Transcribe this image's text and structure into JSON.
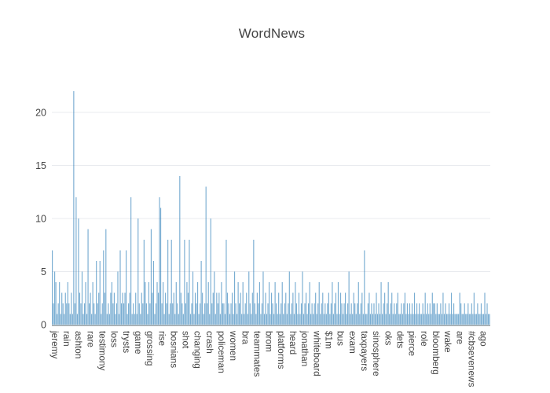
{
  "title": "WordNews",
  "colors": {
    "background": "#ffffff",
    "title_text": "#444444",
    "tick_text": "#444444",
    "gridline": "#e9ebef",
    "zeroline": "#95a0a6",
    "bar": "#1f77b4"
  },
  "chart_data": {
    "type": "bar",
    "title": "WordNews",
    "xlabel": "",
    "ylabel": "",
    "ylim": [
      0,
      23
    ],
    "yticks": [
      0,
      5,
      10,
      15,
      20
    ],
    "grid": true,
    "legend": false,
    "bar_color": "#1f77b4",
    "bar_opacity": 0.6,
    "n_bars": 368,
    "labeled_tick_start_index": 2,
    "labeled_tick_step": 10,
    "tick_labels": [
      "jeremy",
      "rain",
      "ashton",
      "rare",
      "testimony",
      "loss",
      "trysts",
      "game",
      "grossing",
      "rise",
      "bosnians",
      "shot",
      "changing",
      "crash",
      "policeman",
      "women",
      "bra",
      "teammates",
      "brom",
      "platforms",
      "heard",
      "jonathan",
      "whiteboard",
      "$1m",
      "bus",
      "exam",
      "taxpayers",
      "sinosphere",
      "oks",
      "dets",
      "pierce",
      "role",
      "bloomberg",
      "wake",
      "are",
      "#cbsevenews",
      "ago"
    ],
    "values": [
      7,
      2,
      5,
      4,
      1,
      2,
      4,
      1,
      3,
      2,
      1,
      3,
      2,
      4,
      2,
      1,
      3,
      1,
      22,
      2,
      12,
      1,
      10,
      3,
      2,
      5,
      1,
      2,
      4,
      1,
      9,
      2,
      3,
      1,
      4,
      2,
      1,
      6,
      2,
      3,
      6,
      1,
      2,
      7,
      3,
      9,
      1,
      2,
      1,
      3,
      4,
      2,
      3,
      1,
      2,
      5,
      1,
      7,
      2,
      3,
      2,
      3,
      7,
      1,
      2,
      3,
      12,
      1,
      2,
      1,
      3,
      1,
      10,
      2,
      1,
      3,
      2,
      8,
      4,
      2,
      1,
      4,
      2,
      9,
      3,
      6,
      1,
      2,
      4,
      3,
      12,
      11,
      2,
      4,
      1,
      3,
      2,
      8,
      1,
      2,
      8,
      2,
      3,
      1,
      4,
      2,
      1,
      14,
      3,
      2,
      1,
      8,
      2,
      4,
      3,
      8,
      1,
      2,
      5,
      1,
      3,
      2,
      4,
      1,
      2,
      6,
      3,
      1,
      2,
      13,
      2,
      4,
      1,
      10,
      2,
      3,
      5,
      1,
      3,
      2,
      3,
      1,
      4,
      2,
      2,
      1,
      8,
      3,
      2,
      1,
      2,
      3,
      1,
      5,
      2,
      1,
      4,
      2,
      3,
      1,
      4,
      1,
      2,
      3,
      1,
      5,
      2,
      1,
      3,
      8,
      2,
      1,
      3,
      2,
      4,
      1,
      2,
      5,
      1,
      3,
      1,
      2,
      4,
      1,
      3,
      2,
      1,
      4,
      2,
      1,
      3,
      1,
      2,
      4,
      1,
      2,
      3,
      1,
      2,
      5,
      1,
      2,
      3,
      1,
      4,
      2,
      1,
      3,
      1,
      2,
      5,
      1,
      2,
      3,
      1,
      2,
      4,
      1,
      2,
      1,
      2,
      3,
      1,
      2,
      4,
      1,
      2,
      3,
      1,
      2,
      1,
      2,
      3,
      1,
      2,
      4,
      1,
      2,
      3,
      1,
      4,
      1,
      3,
      2,
      1,
      2,
      3,
      1,
      2,
      5,
      1,
      2,
      1,
      3,
      2,
      1,
      2,
      4,
      1,
      2,
      3,
      1,
      7,
      1,
      1,
      2,
      3,
      1,
      2,
      1,
      2,
      1,
      3,
      1,
      2,
      1,
      4,
      1,
      2,
      3,
      1,
      2,
      4,
      1,
      2,
      3,
      1,
      2,
      1,
      2,
      3,
      1,
      1,
      2,
      1,
      2,
      3,
      1,
      2,
      1,
      2,
      1,
      2,
      1,
      3,
      1,
      2,
      1,
      2,
      1,
      1,
      2,
      1,
      3,
      1,
      2,
      1,
      2,
      1,
      3,
      2,
      2,
      1,
      2,
      1,
      1,
      2,
      1,
      3,
      1,
      2,
      1,
      1,
      2,
      1,
      3,
      1,
      2,
      1,
      1,
      1,
      1,
      3,
      2,
      1,
      1,
      2,
      1,
      1,
      2,
      1,
      1,
      2,
      1,
      3,
      1,
      1,
      2,
      1,
      1,
      2,
      1,
      1,
      3,
      1,
      2,
      1,
      1
    ]
  }
}
